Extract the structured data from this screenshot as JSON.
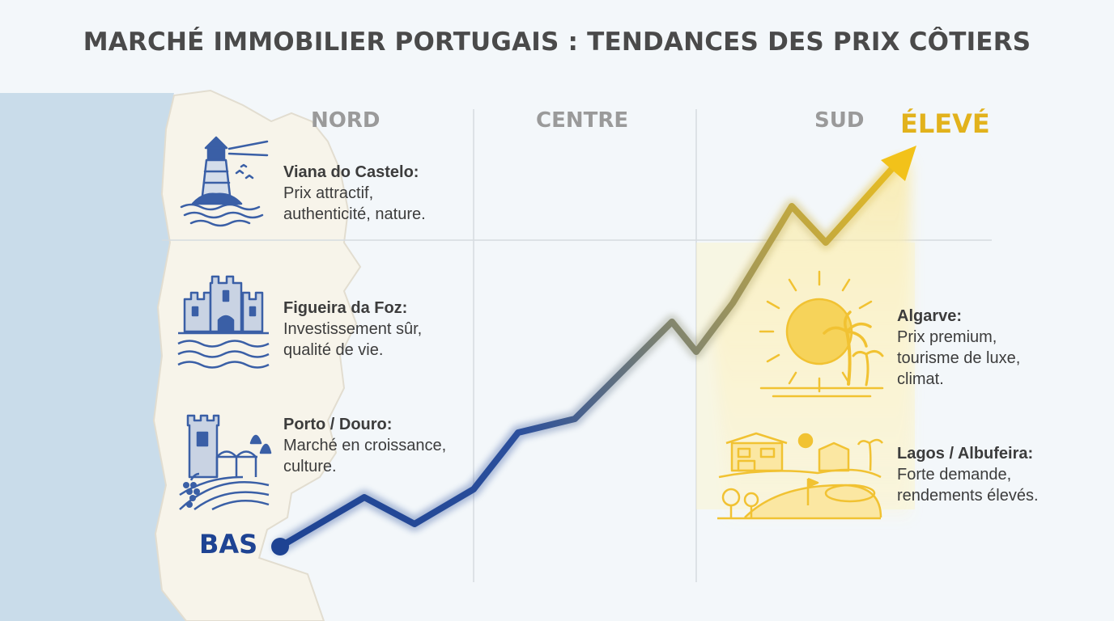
{
  "title": "MARCHÉ IMMOBILIER PORTUGAIS : TENDANCES DES PRIX CÔTIERS",
  "columns": [
    "NORD",
    "CENTRE",
    "SUD"
  ],
  "levels": {
    "high": "ÉLEVÉ",
    "low": "BAS"
  },
  "regions": [
    {
      "name": "Viana do Castelo:",
      "desc": "Prix attractif,\nauthenticité, nature.",
      "icon": "lighthouse-icon"
    },
    {
      "name": "Figueira da Foz:",
      "desc": "Investissement sûr,\nqualité de vie.",
      "icon": "castle-icon"
    },
    {
      "name": "Porto / Douro:",
      "desc": "Marché en croissance,\nculture.",
      "icon": "tower-vineyard-icon"
    },
    {
      "name": "Algarve:",
      "desc": "Prix premium,\ntourisme de luxe,\nclimat.",
      "icon": "sun-palm-icon"
    },
    {
      "name": "Lagos / Albufeira:",
      "desc": "Forte demande,\nrendements élevés.",
      "icon": "villa-golf-icon"
    }
  ],
  "colors": {
    "low": "#1e4393",
    "high": "#f0c419",
    "sea": "#c9dcea",
    "land": "#f7f4ea",
    "icon_blue": "#3a5fa6",
    "icon_yellow": "#f1c232"
  }
}
